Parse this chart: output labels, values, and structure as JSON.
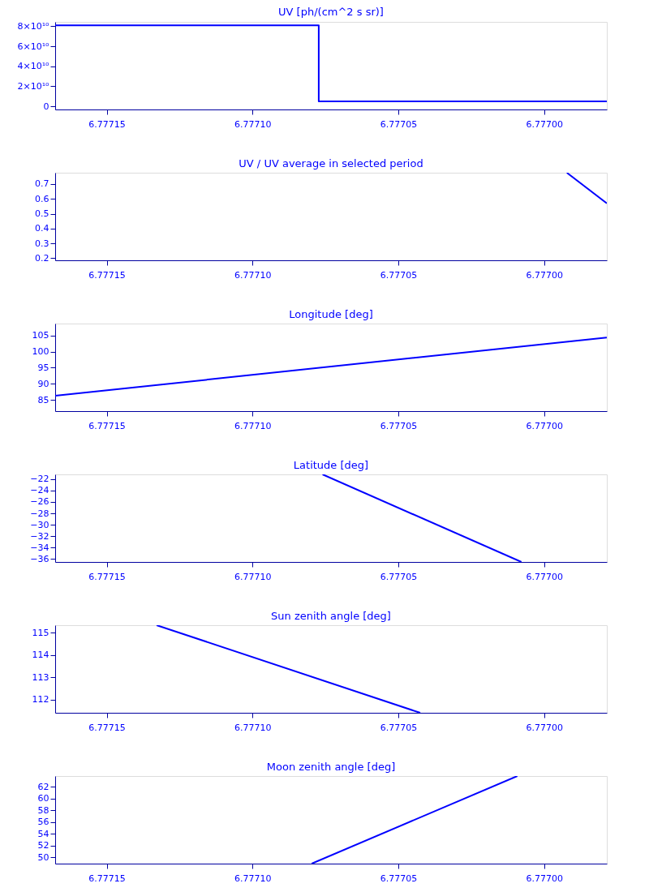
{
  "chart_data": [
    {
      "type": "step",
      "title": "UV [ph/(cm^2 s sr)]",
      "x": [
        6.7771677,
        6.7770773,
        6.7769785
      ],
      "series": [
        {
          "color": "#0000ff",
          "values": [
            81000000000.0,
            5000000000.0,
            5000000000.0
          ]
        }
      ],
      "xlim": [
        6.7771677,
        6.7769785
      ],
      "xticks": [
        {
          "value": 6.77715,
          "label": "6.77715"
        },
        {
          "value": 6.7771,
          "label": "6.77710"
        },
        {
          "value": 6.77705,
          "label": "6.77705"
        },
        {
          "value": 6.777,
          "label": "6.77700"
        }
      ],
      "ylim": [
        -3200000000.0,
        84400000000.0
      ],
      "yticks": [
        {
          "value": 0,
          "label": "0"
        },
        {
          "value": 20000000000.0,
          "label": "2×10¹⁰"
        },
        {
          "value": 40000000000.0,
          "label": "4×10¹⁰"
        },
        {
          "value": 60000000000.0,
          "label": "6×10¹⁰"
        },
        {
          "value": 80000000000.0,
          "label": "8×10¹⁰"
        }
      ]
    },
    {
      "type": "line",
      "title": "UV / UV average in selected period",
      "x": [
        6.7769922,
        6.7769785
      ],
      "series": [
        {
          "color": "#0000ff",
          "values": [
            0.776,
            0.57
          ]
        }
      ],
      "xlim": [
        6.7771677,
        6.7769785
      ],
      "xticks": [
        {
          "value": 6.77715,
          "label": "6.77715"
        },
        {
          "value": 6.7771,
          "label": "6.77710"
        },
        {
          "value": 6.77705,
          "label": "6.77705"
        },
        {
          "value": 6.777,
          "label": "6.77700"
        }
      ],
      "ylim": [
        0.186,
        0.776
      ],
      "yticks": [
        0.2,
        0.3,
        0.4,
        0.5,
        0.6,
        0.7
      ]
    },
    {
      "type": "line",
      "title": "Longitude [deg]",
      "x": [
        6.7771677,
        6.7769785
      ],
      "series": [
        {
          "color": "#0000ff",
          "values": [
            86.3,
            104.4
          ]
        }
      ],
      "xlim": [
        6.7771677,
        6.7769785
      ],
      "xticks": [
        {
          "value": 6.77715,
          "label": "6.77715"
        },
        {
          "value": 6.7771,
          "label": "6.77710"
        },
        {
          "value": 6.77705,
          "label": "6.77705"
        },
        {
          "value": 6.777,
          "label": "6.77700"
        }
      ],
      "ylim": [
        81.5,
        108.75
      ],
      "yticks": [
        85,
        90,
        95,
        100,
        105
      ]
    },
    {
      "type": "line",
      "title": "Latitude [deg]",
      "x": [
        6.777076,
        6.7770078
      ],
      "series": [
        {
          "color": "#0000ff",
          "values": [
            -21.2,
            -36.5
          ]
        }
      ],
      "xlim": [
        6.7771677,
        6.7769785
      ],
      "xticks": [
        {
          "value": 6.77715,
          "label": "6.77715"
        },
        {
          "value": 6.7771,
          "label": "6.77710"
        },
        {
          "value": 6.77705,
          "label": "6.77705"
        },
        {
          "value": 6.777,
          "label": "6.77700"
        }
      ],
      "ylim": [
        -36.5,
        -21.2
      ],
      "yticks": [
        -36,
        -34,
        -32,
        -30,
        -28,
        -26,
        -24,
        -22
      ]
    },
    {
      "type": "line",
      "title": "Sun zenith angle [deg]",
      "x": [
        6.7771329,
        6.7770425
      ],
      "series": [
        {
          "color": "#0000ff",
          "values": [
            115.34,
            111.41
          ]
        }
      ],
      "xlim": [
        6.7771677,
        6.7769785
      ],
      "xticks": [
        {
          "value": 6.77715,
          "label": "6.77715"
        },
        {
          "value": 6.7771,
          "label": "6.77710"
        },
        {
          "value": 6.77705,
          "label": "6.77705"
        },
        {
          "value": 6.777,
          "label": "6.77700"
        }
      ],
      "ylim": [
        111.41,
        115.34
      ],
      "yticks": [
        112,
        113,
        114,
        115
      ]
    },
    {
      "type": "line",
      "title": "Moon zenith angle [deg]",
      "x": [
        6.7770797,
        6.7770092
      ],
      "series": [
        {
          "color": "#0000ff",
          "values": [
            48.9,
            63.8
          ]
        }
      ],
      "xlim": [
        6.7771677,
        6.7769785
      ],
      "xticks": [
        {
          "value": 6.77715,
          "label": "6.77715"
        },
        {
          "value": 6.7771,
          "label": "6.77710"
        },
        {
          "value": 6.77705,
          "label": "6.77705"
        },
        {
          "value": 6.777,
          "label": "6.77700"
        }
      ],
      "ylim": [
        48.9,
        63.8
      ],
      "yticks": [
        50,
        52,
        54,
        56,
        58,
        60,
        62
      ]
    }
  ]
}
